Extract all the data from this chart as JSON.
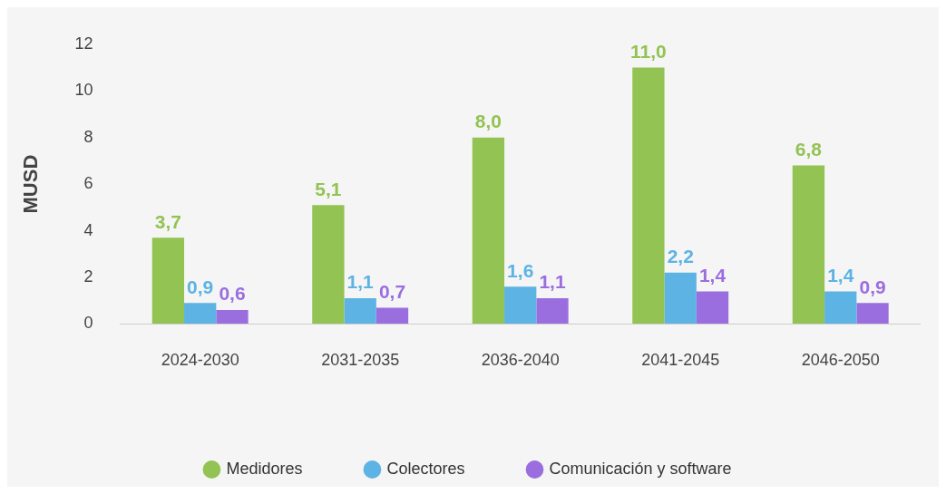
{
  "chart_data": {
    "type": "bar",
    "ylabel": "MUSD",
    "categories": [
      "2024-2030",
      "2031-2035",
      "2036-2040",
      "2041-2045",
      "2046-2050"
    ],
    "series": [
      {
        "name": "Medidores",
        "color": "#92c353",
        "values": [
          3.7,
          5.1,
          8.0,
          11.0,
          6.8
        ],
        "value_labels": [
          "3,7",
          "5,1",
          "8,0",
          "11,0",
          "6,8"
        ]
      },
      {
        "name": "Colectores",
        "color": "#5db3e4",
        "values": [
          0.9,
          1.1,
          1.6,
          2.2,
          1.4
        ],
        "value_labels": [
          "0,9",
          "1,1",
          "1,6",
          "2,2",
          "1,4"
        ]
      },
      {
        "name": "Comunicación y software",
        "color": "#9b6ee0",
        "values": [
          0.6,
          0.7,
          1.1,
          1.4,
          0.9
        ],
        "value_labels": [
          "0,6",
          "0,7",
          "1,1",
          "1,4",
          "0,9"
        ]
      }
    ],
    "ylim": [
      0,
      12
    ],
    "yticks": [
      0,
      2,
      4,
      6,
      8,
      10,
      12
    ],
    "grid": false,
    "legend": "bottom"
  }
}
